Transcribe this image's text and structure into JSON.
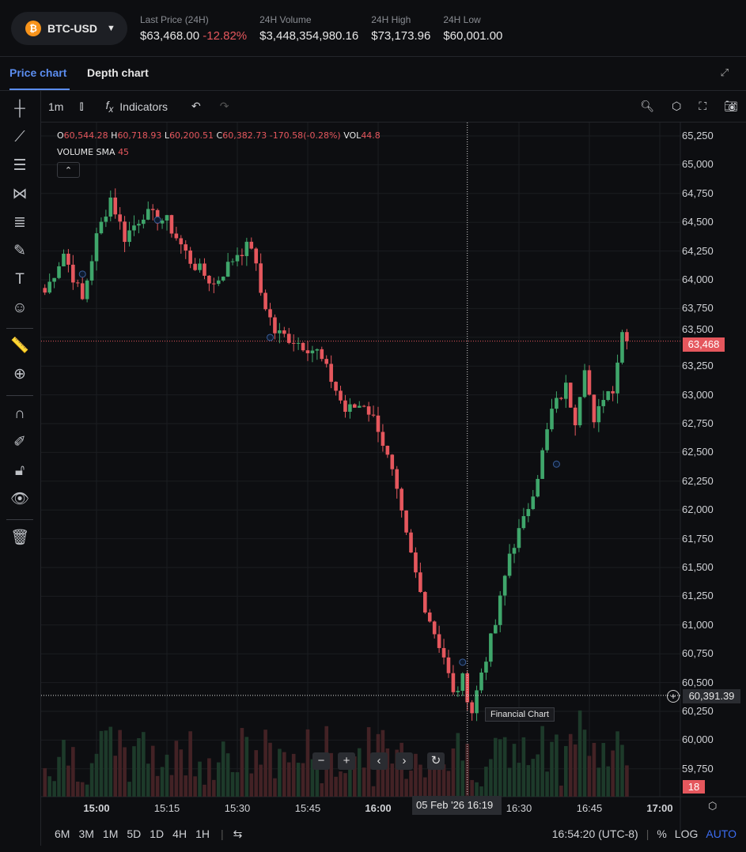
{
  "header": {
    "pair": "BTC-USD",
    "coin_icon": "bitcoin-icon",
    "stats": [
      {
        "label": "Last Price (24H)",
        "value": "$63,468.00",
        "change": "-12.82%"
      },
      {
        "label": "24H Volume",
        "value": "$3,448,354,980.16"
      },
      {
        "label": "24H High",
        "value": "$73,173.96"
      },
      {
        "label": "24H Low",
        "value": "$60,001.00"
      }
    ]
  },
  "tabs": [
    {
      "label": "Price chart",
      "active": true
    },
    {
      "label": "Depth chart"
    }
  ],
  "toolbar": {
    "interval": "1m",
    "indicators": "Indicators"
  },
  "legend": {
    "o_label": "O",
    "o": "60,544.28",
    "h_label": "H",
    "h": "60,718.93",
    "l_label": "L",
    "l": "60,200.51",
    "c_label": "C",
    "c": "60,382.73",
    "change": "-170.58",
    "change_pct": "(-0.28%)",
    "vol_label": "VOL",
    "vol": "44.8",
    "sma_label": "VOLUME SMA",
    "sma": "45"
  },
  "price_axis": [
    "65,250",
    "65,000",
    "64,750",
    "64,500",
    "64,250",
    "64,000",
    "63,750",
    "63,500",
    "63,250",
    "63,000",
    "62,750",
    "62,500",
    "62,250",
    "62,000",
    "61,750",
    "61,500",
    "61,250",
    "61,000",
    "60,750",
    "60,500",
    "60,250",
    "60,000",
    "59,750"
  ],
  "last_price_tag": "63,468",
  "crosshair_price": "60,391.39",
  "volume_tag": "18",
  "time_axis": [
    "15:00",
    "15:15",
    "15:30",
    "15:45",
    "16:00",
    "16:30",
    "16:45",
    "17:00"
  ],
  "crosshair_time": {
    "date": "05 Feb '26",
    "time": "16:19"
  },
  "tooltip": "Financial Chart",
  "ranges": [
    "6M",
    "3M",
    "1M",
    "5D",
    "1D",
    "4H",
    "1H"
  ],
  "clock": "16:54:20 (UTC-8)",
  "pct": "%",
  "log": "LOG",
  "auto": "AUTO",
  "colors": {
    "up": "#3fa66b",
    "down": "#e5575d",
    "accent": "#5b8def",
    "auto": "#3b6cf0"
  },
  "chart_data": {
    "type": "candlestick",
    "interval": "1m",
    "ylim": [
      59600,
      65300
    ],
    "close_keypoints": [
      [
        "14:49",
        63891
      ],
      [
        "14:53",
        64234
      ],
      [
        "14:57",
        63822
      ],
      [
        "15:00",
        64371
      ],
      [
        "15:03",
        64715
      ],
      [
        "15:06",
        64371
      ],
      [
        "15:10",
        64577
      ],
      [
        "15:15",
        64508
      ],
      [
        "15:20",
        64166
      ],
      [
        "15:25",
        63960
      ],
      [
        "15:30",
        64234
      ],
      [
        "15:33",
        64303
      ],
      [
        "15:35",
        63891
      ],
      [
        "15:38",
        63548
      ],
      [
        "15:42",
        63479
      ],
      [
        "15:47",
        63376
      ],
      [
        "15:50",
        63136
      ],
      [
        "15:53",
        62862
      ],
      [
        "15:57",
        62930
      ],
      [
        "16:00",
        62724
      ],
      [
        "16:03",
        62313
      ],
      [
        "16:06",
        61763
      ],
      [
        "16:09",
        61283
      ],
      [
        "16:12",
        60940
      ],
      [
        "16:14",
        60734
      ],
      [
        "16:16",
        60391
      ],
      [
        "16:18",
        60528
      ],
      [
        "16:20",
        60254
      ],
      [
        "16:22",
        60597
      ],
      [
        "16:25",
        61008
      ],
      [
        "16:28",
        61626
      ],
      [
        "16:31",
        61901
      ],
      [
        "16:34",
        62313
      ],
      [
        "16:37",
        62862
      ],
      [
        "16:40",
        63068
      ],
      [
        "16:42",
        62793
      ],
      [
        "16:44",
        63273
      ],
      [
        "16:46",
        62724
      ],
      [
        "16:48",
        63000
      ],
      [
        "16:50",
        63068
      ],
      [
        "16:52",
        63548
      ],
      [
        "16:53",
        63468
      ]
    ]
  }
}
